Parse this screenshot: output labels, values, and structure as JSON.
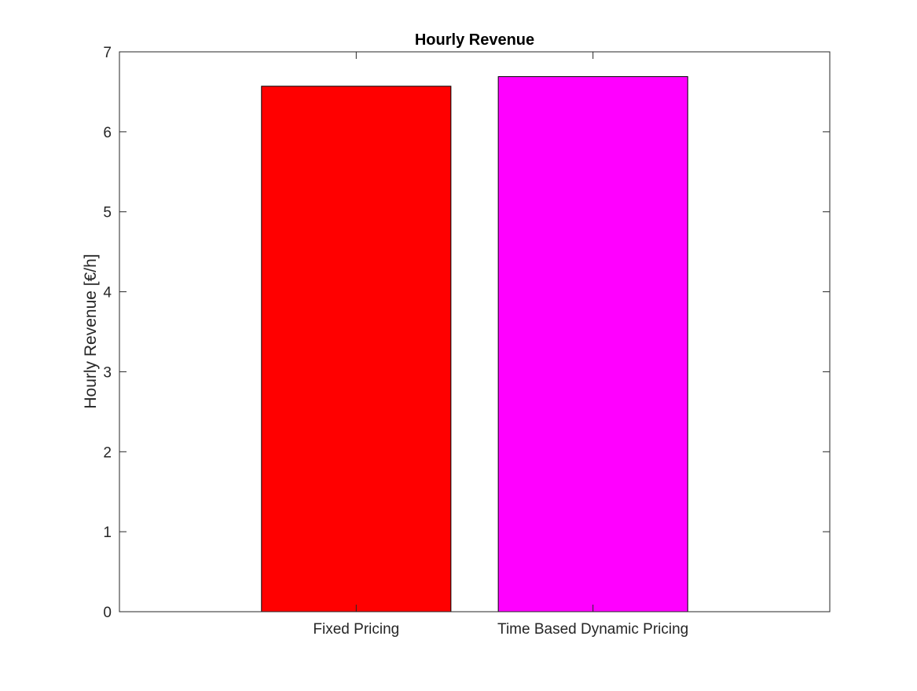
{
  "chart_data": {
    "type": "bar",
    "title": "Hourly Revenue",
    "xlabel": "",
    "ylabel": "Hourly Revenue [€/h]",
    "categories": [
      "Fixed Pricing",
      "Time Based Dynamic Pricing"
    ],
    "values": [
      6.57,
      6.69
    ],
    "bar_colors": [
      "#ff0000",
      "#ff00ff"
    ],
    "ylim": [
      0,
      7
    ],
    "yticks": [
      0,
      1,
      2,
      3,
      4,
      5,
      6,
      7
    ],
    "ytick_labels": [
      "0",
      "1",
      "2",
      "3",
      "4",
      "5",
      "6",
      "7"
    ],
    "xlim": [
      0,
      3
    ],
    "grid": false,
    "legend": "none",
    "box": true
  }
}
